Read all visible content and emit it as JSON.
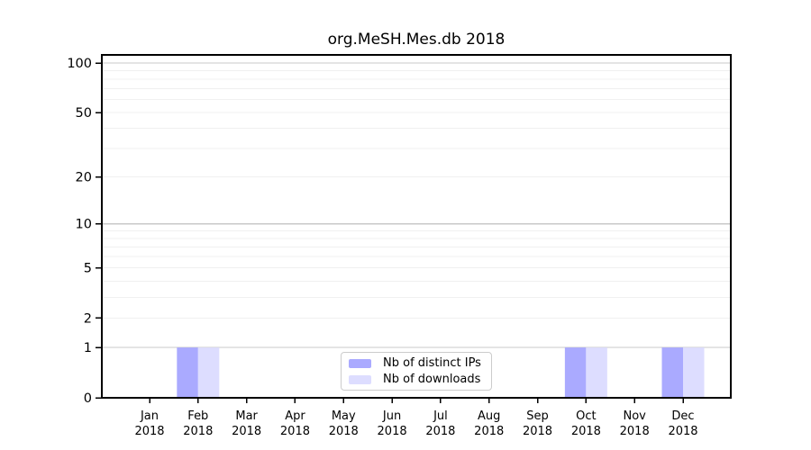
{
  "chart_data": {
    "type": "bar",
    "title": "org.MeSH.Mes.db 2018",
    "categories": [
      "Jan",
      "Feb",
      "Mar",
      "Apr",
      "May",
      "Jun",
      "Jul",
      "Aug",
      "Sep",
      "Oct",
      "Nov",
      "Dec"
    ],
    "category_year": "2018",
    "series": [
      {
        "name": "Nb of distinct IPs",
        "color": "#aaaaff",
        "values": [
          0,
          1,
          0,
          0,
          0,
          0,
          0,
          0,
          0,
          1,
          0,
          1
        ]
      },
      {
        "name": "Nb of downloads",
        "color": "#ddddff",
        "values": [
          0,
          1,
          0,
          0,
          0,
          0,
          0,
          0,
          0,
          1,
          0,
          1
        ]
      }
    ],
    "xlabel": "",
    "ylabel": "",
    "y_axis": {
      "scale": "log1p",
      "ticks": [
        0,
        1,
        2,
        5,
        10,
        20,
        50,
        100
      ],
      "major_gridlines": [
        1,
        10,
        100
      ],
      "minor_gridlines": [
        2,
        3,
        4,
        5,
        6,
        7,
        8,
        9,
        20,
        30,
        40,
        50,
        60,
        70,
        80,
        90
      ],
      "ylim": [
        0,
        112
      ]
    },
    "grid": "horizontal",
    "legend_position": "bottom-center-inside",
    "colors": {
      "background": "#ffffff",
      "axis": "#000000",
      "major_grid": "#c8c8c8",
      "minor_grid": "#f0f0f0",
      "legend_border": "#cccccc",
      "text": "#000000"
    }
  }
}
